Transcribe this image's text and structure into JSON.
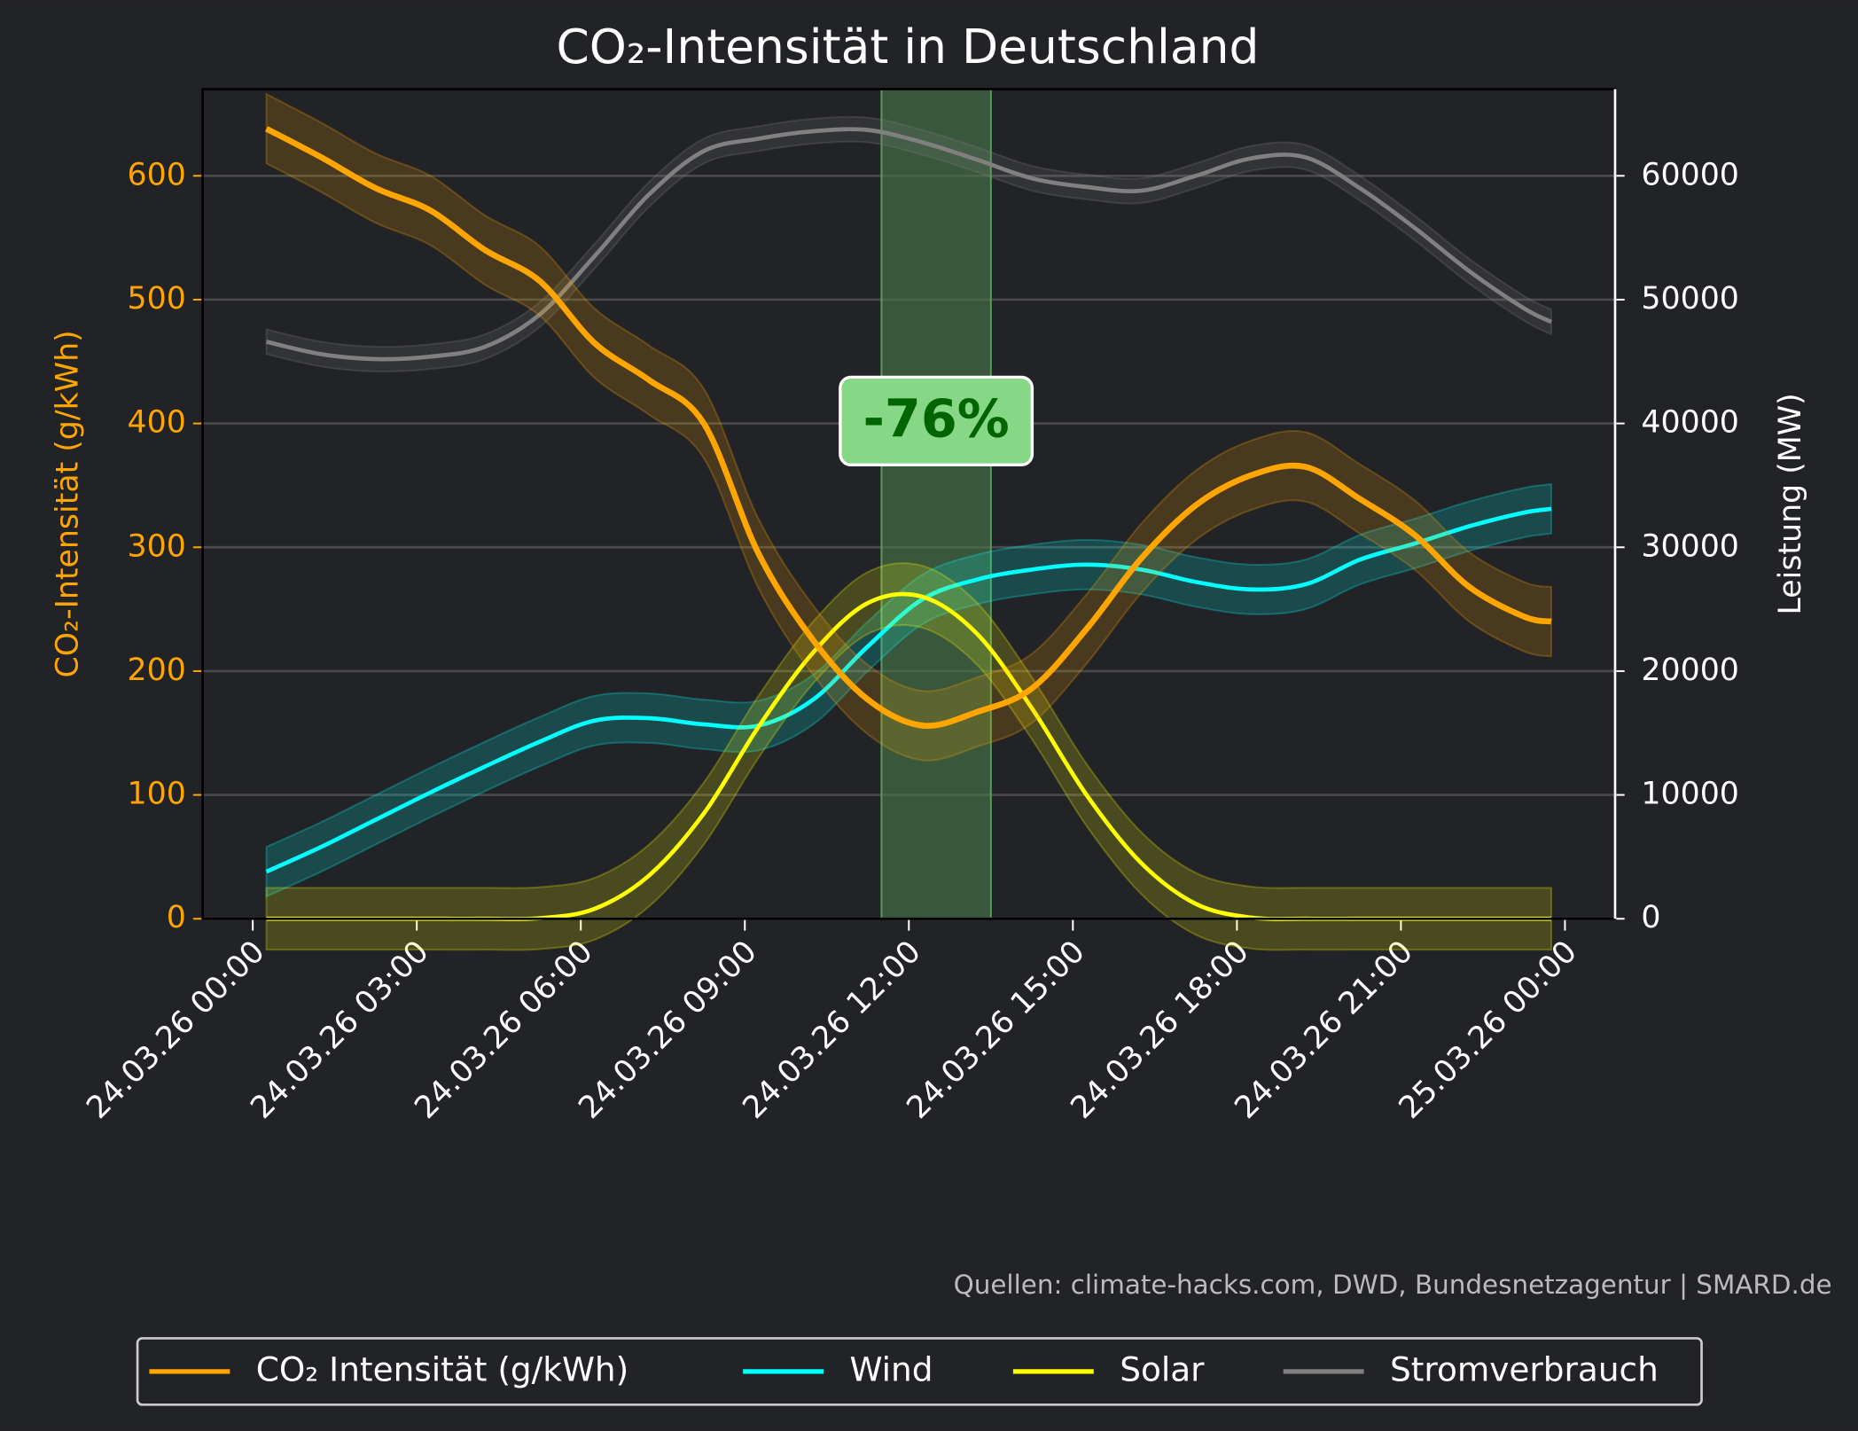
{
  "chart_data": {
    "type": "line",
    "title": "CO₂-Intensität in Deutschland",
    "ylabel": "CO₂-Intensität (g/kWh)",
    "y2label": "Leistung (MW)",
    "annotation": "-76%",
    "source": "Quellen: climate-hacks.com, DWD, Bundesnetzagentur | SMARD.de",
    "highlight": [
      "24.03.26 11:30",
      "24.03.26 13:30"
    ],
    "x": [
      "24.03.26 00:15",
      "24.03.26 01:15",
      "24.03.26 02:15",
      "24.03.26 03:15",
      "24.03.26 04:15",
      "24.03.26 05:15",
      "24.03.26 06:15",
      "24.03.26 07:15",
      "24.03.26 08:15",
      "24.03.26 09:15",
      "24.03.26 10:15",
      "24.03.26 11:15",
      "24.03.26 12:15",
      "24.03.26 13:15",
      "24.03.26 14:15",
      "24.03.26 15:15",
      "24.03.26 16:15",
      "24.03.26 17:15",
      "24.03.26 18:15",
      "24.03.26 19:15",
      "24.03.26 20:15",
      "24.03.26 21:15",
      "24.03.26 22:15",
      "24.03.26 23:15",
      "24.03.26 23:45"
    ],
    "series": [
      {
        "name": "CO₂ Intensität (g/kWh)",
        "color": "#ffa500",
        "spread": 28,
        "values": [
          638,
          615,
          590,
          572,
          540,
          515,
          465,
          435,
          400,
          295,
          225,
          177,
          156,
          167,
          186,
          234,
          291,
          334,
          358,
          365,
          339,
          310,
          268,
          244,
          240
        ]
      },
      {
        "name": "Wind",
        "color": "#00ffff",
        "axis": "y2",
        "spread": 2000,
        "values": [
          3800,
          5800,
          8000,
          10200,
          12300,
          14300,
          16000,
          16200,
          15700,
          15600,
          17700,
          22000,
          25800,
          27400,
          28200,
          28600,
          28200,
          27200,
          26600,
          27000,
          29000,
          30300,
          31700,
          32800,
          33100
        ]
      },
      {
        "name": "Solar",
        "color": "#ffff00",
        "axis": "y2",
        "spread": 2500,
        "values": [
          0,
          0,
          0,
          0,
          0,
          50,
          800,
          3500,
          8500,
          15500,
          21500,
          25500,
          26000,
          23000,
          17000,
          10000,
          4500,
          1200,
          100,
          0,
          0,
          0,
          0,
          0,
          0
        ]
      },
      {
        "name": "Stromverbrauch",
        "color": "#808080",
        "axis": "y2",
        "spread": 1000,
        "values": [
          46600,
          45600,
          45200,
          45400,
          46200,
          48800,
          53500,
          58500,
          62000,
          63000,
          63600,
          63700,
          62700,
          61300,
          59800,
          59100,
          58800,
          60000,
          61400,
          61500,
          59000,
          55800,
          52300,
          49300,
          48200
        ]
      }
    ],
    "xlim": [
      "23.03.26 23:05",
      "25.03.26 00:55"
    ],
    "xticks": [
      "24.03.26 00:00",
      "24.03.26 03:00",
      "24.03.26 06:00",
      "24.03.26 09:00",
      "24.03.26 12:00",
      "24.03.26 15:00",
      "24.03.26 18:00",
      "24.03.26 21:00",
      "25.03.26 00:00"
    ],
    "ylim": [
      0,
      670
    ],
    "yticks": [
      0,
      100,
      200,
      300,
      400,
      500,
      600
    ],
    "y2lim": [
      0,
      67000
    ],
    "y2ticks": [
      0,
      10000,
      20000,
      30000,
      40000,
      50000,
      60000
    ],
    "grid": true
  }
}
